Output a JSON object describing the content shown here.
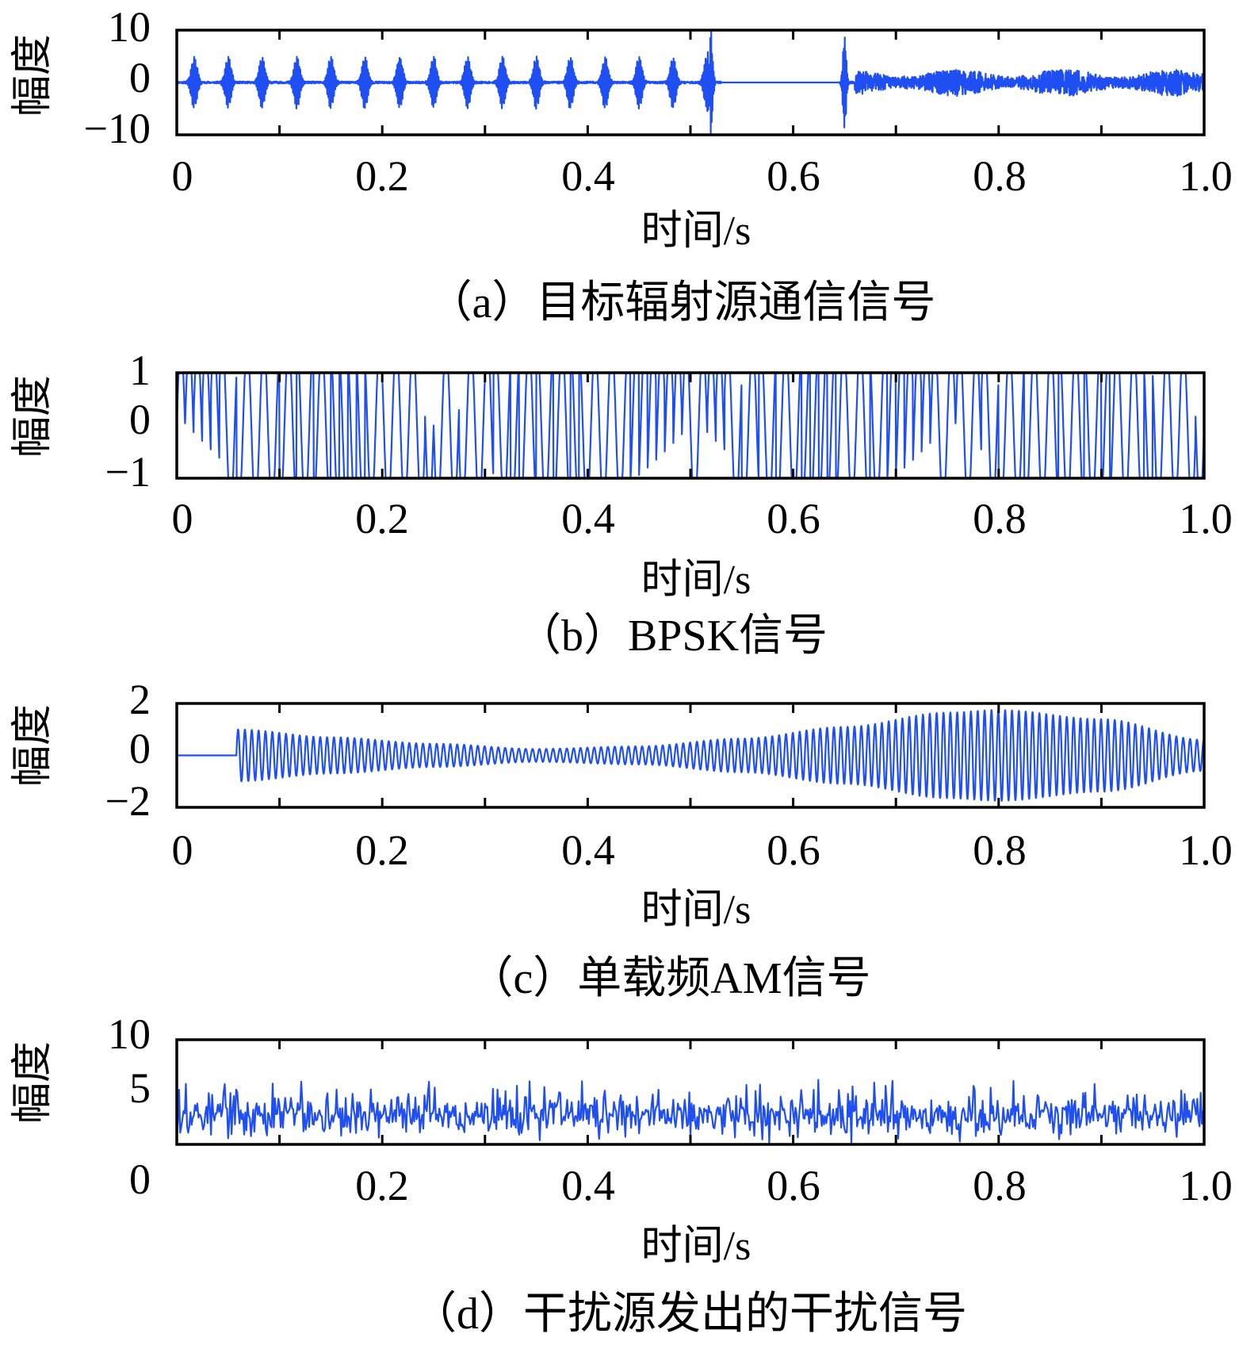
{
  "chart_data": [
    {
      "type": "line",
      "caption": "（a）目标辐射源通信信号",
      "xlabel": "时间/s",
      "ylabel": "幅度",
      "xlim": [
        0,
        1.0
      ],
      "ylim": [
        -10,
        10
      ],
      "x_ticks": [
        "0",
        "0.2",
        "0.4",
        "0.6",
        "0.8",
        "1.0"
      ],
      "y_ticks": [
        "10",
        "0",
        "−10"
      ],
      "color": "#1f4ff2",
      "series": [
        {
          "pattern": "burst-train-then-noise",
          "pulse_times": [
            0.017,
            0.05,
            0.083,
            0.117,
            0.15,
            0.183,
            0.217,
            0.25,
            0.283,
            0.317,
            0.35,
            0.383,
            0.417,
            0.45,
            0.483,
            0.516
          ],
          "pulse_peak": 5,
          "spikes": [
            {
              "t": 0.52,
              "peak": 9.5
            },
            {
              "t": 0.65,
              "peak": 9
            }
          ],
          "quiet_interval": [
            0.53,
            0.645
          ],
          "noise_interval": [
            0.66,
            1.0
          ],
          "noise_amplitude": 2.5
        }
      ]
    },
    {
      "type": "line",
      "caption": "（b）BPSK信号",
      "xlabel": "时间/s",
      "ylabel": "幅度",
      "xlim": [
        0,
        1.0
      ],
      "ylim": [
        -1,
        1
      ],
      "x_ticks": [
        "0",
        "0.2",
        "0.4",
        "0.6",
        "0.8",
        "1.0"
      ],
      "y_ticks": [
        "1",
        "0",
        "−1"
      ],
      "color": "#1f4ff2",
      "series": [
        {
          "pattern": "bpsk",
          "amplitude": 1,
          "carrier_cycles": 62,
          "symbols": 120
        }
      ]
    },
    {
      "type": "line",
      "caption": "（c）单载频AM信号",
      "xlabel": "时间/s",
      "ylabel": "幅度",
      "xlim": [
        0,
        1.0
      ],
      "ylim": [
        -2,
        2
      ],
      "x_ticks": [
        "0",
        "0.2",
        "0.4",
        "0.6",
        "0.8",
        "1.0"
      ],
      "y_ticks": [
        "2",
        "0",
        "−2"
      ],
      "color": "#1f4ff2",
      "series": [
        {
          "pattern": "am",
          "start": 0.058,
          "envelope_points": [
            [
              0.058,
              1.0
            ],
            [
              0.15,
              0.7
            ],
            [
              0.25,
              0.45
            ],
            [
              0.35,
              0.25
            ],
            [
              0.45,
              0.35
            ],
            [
              0.55,
              0.65
            ],
            [
              0.65,
              1.1
            ],
            [
              0.75,
              1.65
            ],
            [
              0.8,
              1.75
            ],
            [
              0.9,
              1.4
            ],
            [
              1.0,
              0.6
            ]
          ],
          "carrier_cycles": 150
        }
      ]
    },
    {
      "type": "line",
      "caption": "（d）干扰源发出的干扰信号",
      "xlabel": "时间/s",
      "ylabel": "幅度",
      "xlim": [
        0,
        1.0
      ],
      "ylim": [
        0,
        10
      ],
      "x_ticks": [
        "0",
        "0.2",
        "0.4",
        "0.6",
        "0.8",
        "1.0"
      ],
      "y_ticks": [
        "10",
        "5",
        "0"
      ],
      "color": "#1f4ff2",
      "series": [
        {
          "pattern": "noise",
          "mean": 2.8,
          "min": 0.1,
          "max": 6.2,
          "samples": 900
        }
      ]
    }
  ]
}
